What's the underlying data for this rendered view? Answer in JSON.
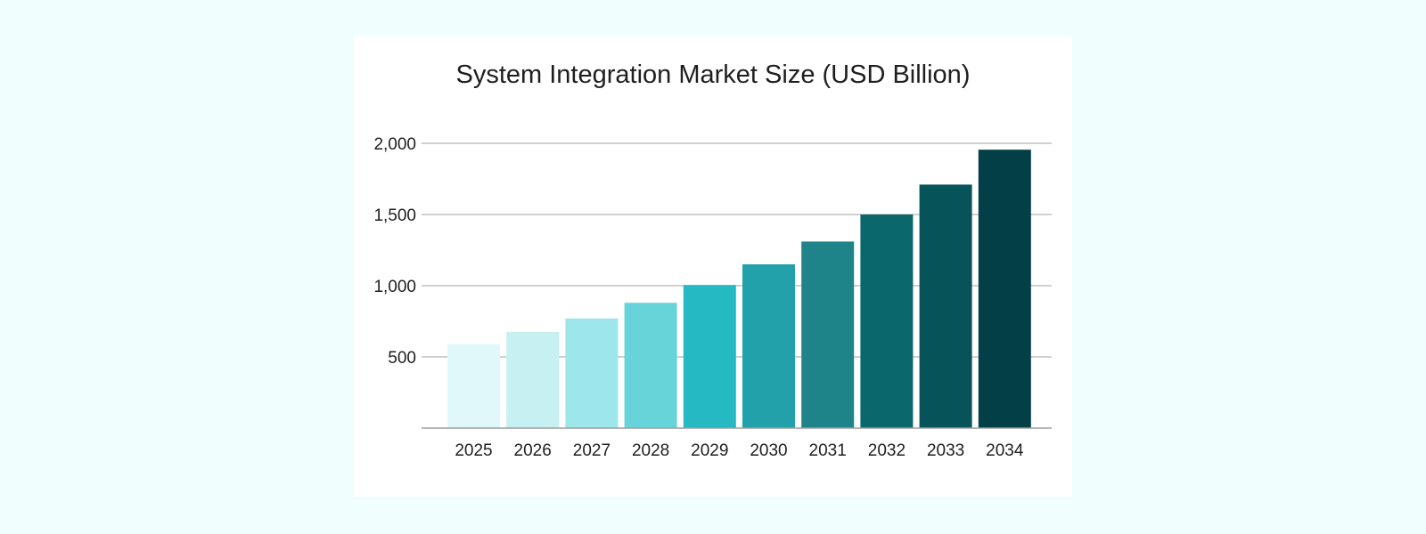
{
  "chart_data": {
    "type": "bar",
    "title": "System Integration Market Size (USD Billion)",
    "xlabel": "",
    "ylabel": "",
    "categories": [
      "2025",
      "2026",
      "2027",
      "2028",
      "2029",
      "2030",
      "2031",
      "2032",
      "2033",
      "2034"
    ],
    "values": [
      590,
      675,
      770,
      880,
      1005,
      1150,
      1310,
      1500,
      1710,
      1955
    ],
    "ylim": [
      0,
      2000
    ],
    "yticks": [
      500,
      1000,
      1500,
      2000
    ],
    "ytick_labels": [
      "500",
      "1,000",
      "1,500",
      "2,000"
    ],
    "grid": true,
    "legend": "none",
    "colors": [
      "#e0f8f9",
      "#c6f0f2",
      "#9de7ec",
      "#67d4d9",
      "#24b9c3",
      "#22a1aa",
      "#1f8489",
      "#0a686d",
      "#06545a",
      "#033f47"
    ]
  },
  "theme": {
    "page_background": "#f0fefe",
    "card_background": "#ffffff",
    "gridline_color": "#b3b3b3",
    "axis_color": "#9e9e9e",
    "text_color": "#1f1f1f"
  }
}
